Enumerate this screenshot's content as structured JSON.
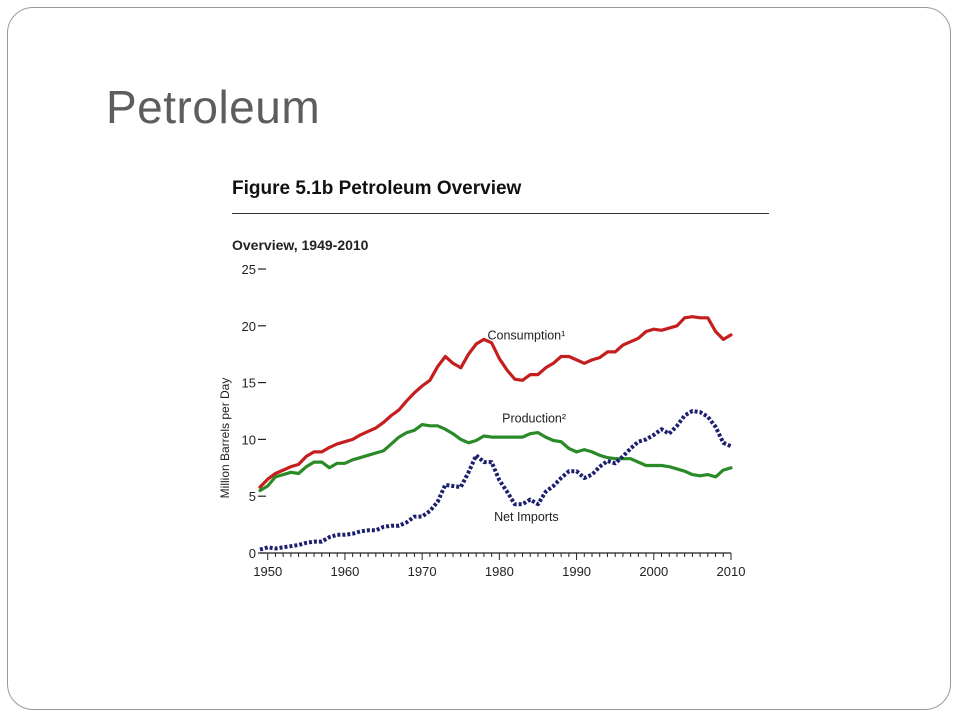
{
  "slide": {
    "title": "Petroleum"
  },
  "figure": {
    "title": "Figure 5.1b  Petroleum Overview",
    "subtitle": "Overview, 1949-2010"
  },
  "colors": {
    "consumption": "#c41e1e",
    "production": "#2a8a28",
    "net_imports": "#1a1f6e",
    "axis": "#222222"
  },
  "chart_data": {
    "type": "line",
    "title": "Figure 5.1b  Petroleum Overview",
    "subtitle": "Overview, 1949-2010",
    "xlabel": "",
    "ylabel": "Million Barrels per Day",
    "xlim": [
      1949,
      2010
    ],
    "ylim": [
      0,
      25
    ],
    "x_ticks": [
      1950,
      1960,
      1970,
      1980,
      1990,
      2000,
      2010
    ],
    "y_ticks": [
      0,
      5,
      10,
      15,
      20,
      25
    ],
    "grid": false,
    "legend": "inline labels",
    "x": [
      1949,
      1950,
      1951,
      1952,
      1953,
      1954,
      1955,
      1956,
      1957,
      1958,
      1959,
      1960,
      1961,
      1962,
      1963,
      1964,
      1965,
      1966,
      1967,
      1968,
      1969,
      1970,
      1971,
      1972,
      1973,
      1974,
      1975,
      1976,
      1977,
      1978,
      1979,
      1980,
      1981,
      1982,
      1983,
      1984,
      1985,
      1986,
      1987,
      1988,
      1989,
      1990,
      1991,
      1992,
      1993,
      1994,
      1995,
      1996,
      1997,
      1998,
      1999,
      2000,
      2001,
      2002,
      2003,
      2004,
      2005,
      2006,
      2007,
      2008,
      2009,
      2010
    ],
    "series": [
      {
        "name": "Consumption¹",
        "style": "solid",
        "values": [
          5.8,
          6.5,
          7.0,
          7.3,
          7.6,
          7.8,
          8.5,
          8.9,
          8.9,
          9.3,
          9.6,
          9.8,
          10.0,
          10.4,
          10.7,
          11.0,
          11.5,
          12.1,
          12.6,
          13.4,
          14.1,
          14.7,
          15.2,
          16.4,
          17.3,
          16.7,
          16.3,
          17.5,
          18.4,
          18.8,
          18.5,
          17.1,
          16.1,
          15.3,
          15.2,
          15.7,
          15.7,
          16.3,
          16.7,
          17.3,
          17.3,
          17.0,
          16.7,
          17.0,
          17.2,
          17.7,
          17.7,
          18.3,
          18.6,
          18.9,
          19.5,
          19.7,
          19.6,
          19.8,
          20.0,
          20.7,
          20.8,
          20.7,
          20.7,
          19.5,
          18.8,
          19.2
        ]
      },
      {
        "name": "Production²",
        "style": "solid",
        "values": [
          5.5,
          5.9,
          6.7,
          6.9,
          7.1,
          7.0,
          7.6,
          8.0,
          8.0,
          7.5,
          7.9,
          7.9,
          8.2,
          8.4,
          8.6,
          8.8,
          9.0,
          9.6,
          10.2,
          10.6,
          10.8,
          11.3,
          11.2,
          11.2,
          10.9,
          10.5,
          10.0,
          9.7,
          9.9,
          10.3,
          10.2,
          10.2,
          10.2,
          10.2,
          10.2,
          10.5,
          10.6,
          10.2,
          9.9,
          9.8,
          9.2,
          8.9,
          9.1,
          8.9,
          8.6,
          8.4,
          8.3,
          8.3,
          8.3,
          8.0,
          7.7,
          7.7,
          7.7,
          7.6,
          7.4,
          7.2,
          6.9,
          6.8,
          6.9,
          6.7,
          7.3,
          7.5
        ]
      },
      {
        "name": "Net Imports",
        "style": "dashed",
        "values": [
          0.3,
          0.5,
          0.4,
          0.5,
          0.6,
          0.7,
          0.9,
          1.0,
          1.0,
          1.4,
          1.6,
          1.6,
          1.7,
          1.9,
          2.0,
          2.0,
          2.3,
          2.4,
          2.4,
          2.7,
          3.2,
          3.2,
          3.7,
          4.5,
          6.0,
          5.9,
          5.8,
          7.1,
          8.6,
          8.0,
          8.0,
          6.4,
          5.4,
          4.3,
          4.3,
          4.7,
          4.3,
          5.4,
          5.9,
          6.6,
          7.2,
          7.2,
          6.6,
          6.9,
          7.6,
          8.1,
          7.9,
          8.5,
          9.2,
          9.8,
          10.0,
          10.4,
          10.9,
          10.5,
          11.2,
          12.1,
          12.5,
          12.4,
          12.0,
          11.1,
          9.7,
          9.4
        ]
      }
    ],
    "annotations": [
      {
        "text": "Consumption¹",
        "x": 1983.5,
        "y": 18.8
      },
      {
        "text": "Production²",
        "x": 1984.5,
        "y": 11.5
      },
      {
        "text": "Net Imports",
        "x": 1983.5,
        "y": 2.8
      }
    ]
  }
}
